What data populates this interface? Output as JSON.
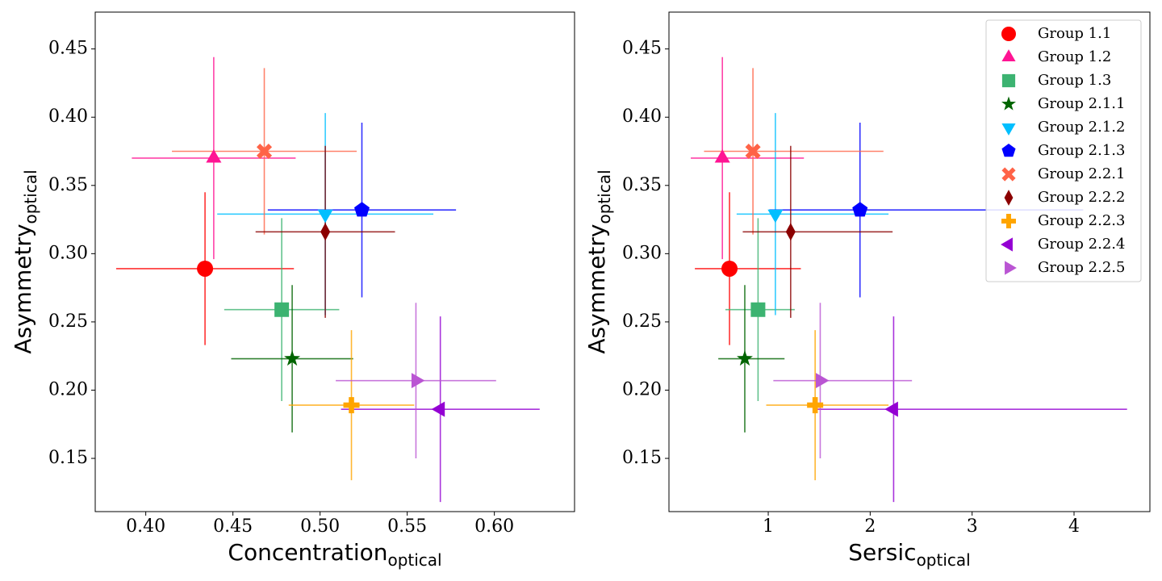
{
  "chart_data": [
    {
      "type": "scatter",
      "xlabel": {
        "text": "Concentration",
        "subscript": "optical"
      },
      "ylabel": {
        "text": "Asymmetry",
        "subscript": "optical"
      },
      "xlim": [
        0.371,
        0.646
      ],
      "ylim": [
        0.111,
        0.477
      ],
      "xticks": [
        {
          "value": 0.4,
          "label": "0.40"
        },
        0.45,
        {
          "value": 0.5,
          "label": "0.50"
        },
        0.55,
        {
          "value": 0.6,
          "label": "0.60"
        }
      ],
      "yticks": [
        0.15,
        {
          "value": 0.2,
          "label": "0.20"
        },
        0.25,
        {
          "value": 0.3,
          "label": "0.30"
        },
        0.35,
        {
          "value": 0.4,
          "label": "0.40"
        },
        0.45
      ],
      "series": [
        {
          "color": "#ff0000",
          "marker": "circle",
          "x": 0.434,
          "xerr": 0.051,
          "y": 0.289,
          "yerr": 0.056
        },
        {
          "color": "#ff1493",
          "marker": "triangle-up",
          "x": 0.439,
          "xerr": 0.047,
          "y": 0.37,
          "yerr": 0.074
        },
        {
          "color": "#3cb371",
          "marker": "square",
          "x": 0.478,
          "xerr": 0.033,
          "y": 0.259,
          "yerr": 0.067
        },
        {
          "color": "#006400",
          "marker": "star",
          "x": 0.484,
          "xerr": 0.035,
          "y": 0.223,
          "yerr": 0.054
        },
        {
          "color": "#00bfff",
          "marker": "triangle-down",
          "x": 0.503,
          "xerr": 0.062,
          "y": 0.329,
          "yerr": 0.074
        },
        {
          "color": "#0000ff",
          "marker": "pentagon",
          "x": 0.524,
          "xerr": 0.054,
          "y": 0.332,
          "yerr": 0.064
        },
        {
          "color": "#ff6347",
          "marker": "x",
          "x": 0.468,
          "xerr": 0.053,
          "y": 0.375,
          "yerr": 0.061
        },
        {
          "color": "#8b0000",
          "marker": "diamond",
          "x": 0.503,
          "xerr": 0.04,
          "y": 0.316,
          "yerr": 0.063
        },
        {
          "color": "#ffa500",
          "marker": "plus",
          "x": 0.518,
          "xerr": 0.036,
          "y": 0.189,
          "yerr": 0.055
        },
        {
          "color": "#9400d3",
          "marker": "triangle-left",
          "x": 0.569,
          "xerr": 0.057,
          "y": 0.186,
          "yerr": 0.068
        },
        {
          "color": "#ba55d3",
          "marker": "triangle-right",
          "x": 0.555,
          "xerr": 0.046,
          "y": 0.207,
          "yerr": 0.057
        }
      ]
    },
    {
      "type": "scatter",
      "xlabel": {
        "text": "Sersic",
        "subscript": "optical"
      },
      "ylabel": {
        "text": "Asymmetry",
        "subscript": "optical"
      },
      "xlim": [
        0.026,
        4.744
      ],
      "ylim": [
        0.111,
        0.477
      ],
      "xticks": [
        1,
        2,
        3,
        4
      ],
      "yticks": [
        0.15,
        {
          "value": 0.2,
          "label": "0.20"
        },
        0.25,
        {
          "value": 0.3,
          "label": "0.30"
        },
        0.35,
        {
          "value": 0.4,
          "label": "0.40"
        },
        0.45
      ],
      "legend": "upper right",
      "series": [
        {
          "name": "Group 1.1",
          "color": "#ff0000",
          "marker": "circle",
          "x": 0.62,
          "xerr": [
            0.34,
            0.7
          ],
          "y": 0.289,
          "yerr": 0.056
        },
        {
          "name": "Group 1.2",
          "color": "#ff1493",
          "marker": "triangle-up",
          "x": 0.55,
          "xerr": [
            0.31,
            0.8
          ],
          "y": 0.37,
          "yerr": 0.074
        },
        {
          "name": "Group 1.3",
          "color": "#3cb371",
          "marker": "square",
          "x": 0.9,
          "xerr": [
            0.32,
            0.36
          ],
          "y": 0.259,
          "yerr": 0.067
        },
        {
          "name": "Group 2.1.1",
          "color": "#006400",
          "marker": "star",
          "x": 0.77,
          "xerr": [
            0.26,
            0.39
          ],
          "y": 0.223,
          "yerr": 0.054
        },
        {
          "name": "Group 2.1.2",
          "color": "#00bfff",
          "marker": "triangle-down",
          "x": 1.07,
          "xerr": [
            0.38,
            1.11
          ],
          "y": 0.329,
          "yerr": 0.074
        },
        {
          "name": "Group 2.1.3",
          "color": "#0000ff",
          "marker": "pentagon",
          "x": 1.9,
          "xerr": [
            0.89,
            2.19
          ],
          "y": 0.332,
          "yerr": 0.064
        },
        {
          "name": "Group 2.2.1",
          "color": "#ff6347",
          "marker": "x",
          "x": 0.85,
          "xerr": [
            0.48,
            1.28
          ],
          "y": 0.375,
          "yerr": 0.061
        },
        {
          "name": "Group 2.2.2",
          "color": "#8b0000",
          "marker": "diamond",
          "x": 1.22,
          "xerr": [
            0.47,
            1.0
          ],
          "y": 0.316,
          "yerr": 0.063
        },
        {
          "name": "Group 2.2.3",
          "color": "#ffa500",
          "marker": "plus",
          "x": 1.46,
          "xerr": [
            0.48,
            0.72
          ],
          "y": 0.189,
          "yerr": 0.055
        },
        {
          "name": "Group 2.2.4",
          "color": "#9400d3",
          "marker": "triangle-left",
          "x": 2.23,
          "xerr": [
            0.77,
            2.29
          ],
          "y": 0.186,
          "yerr": 0.068
        },
        {
          "name": "Group 2.2.5",
          "color": "#ba55d3",
          "marker": "triangle-right",
          "x": 1.51,
          "xerr": [
            0.46,
            0.9
          ],
          "y": 0.207,
          "yerr": 0.057
        }
      ]
    }
  ]
}
